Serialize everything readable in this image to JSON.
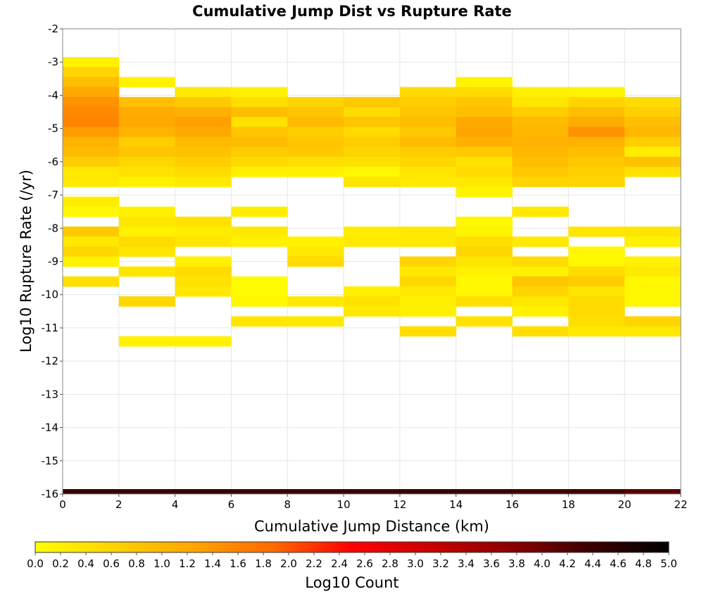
{
  "chart_data": {
    "type": "heatmap",
    "title": "Cumulative Jump Dist vs Rupture Rate",
    "xlabel": "Cumulative Jump Distance (km)",
    "ylabel": "Log10 Rupture Rate (/yr)",
    "xlim": [
      0,
      22
    ],
    "ylim": [
      -16,
      -2
    ],
    "x_ticks": [
      "0",
      "2",
      "4",
      "6",
      "8",
      "10",
      "12",
      "14",
      "16",
      "18",
      "20",
      "22"
    ],
    "y_ticks": [
      "-2",
      "-3",
      "-4",
      "-5",
      "-6",
      "-7",
      "-8",
      "-9",
      "-10",
      "-11",
      "-12",
      "-13",
      "-14",
      "-15",
      "-16"
    ],
    "colorbar": {
      "label": "Log10 Count",
      "range": [
        0,
        5
      ],
      "ticks": [
        "0.0",
        "0.2",
        "0.4",
        "0.6",
        "0.8",
        "1.0",
        "1.2",
        "1.4",
        "1.6",
        "1.8",
        "2.0",
        "2.2",
        "2.4",
        "2.6",
        "2.8",
        "3.0",
        "3.2",
        "3.4",
        "3.6",
        "3.8",
        "4.0",
        "4.2",
        "4.4",
        "4.6",
        "4.8",
        "5.0"
      ],
      "colormap": [
        "#ffff00",
        "#ffd200",
        "#ffa500",
        "#ff6a00",
        "#ff0000",
        "#c80000",
        "#8b0000",
        "#3c0000",
        "#000000"
      ]
    },
    "x_bin_width": 2,
    "y_bin_height": 0.3,
    "grid": true,
    "cells": [
      {
        "x": 0,
        "y": -3,
        "v": 0.2
      },
      {
        "x": 0,
        "y": -3.3,
        "v": 0.6
      },
      {
        "x": 0,
        "y": -3.6,
        "v": 0.9
      },
      {
        "x": 0,
        "y": -3.9,
        "v": 1.2
      },
      {
        "x": 0,
        "y": -4.2,
        "v": 1.45
      },
      {
        "x": 0,
        "y": -4.5,
        "v": 1.55
      },
      {
        "x": 0,
        "y": -4.8,
        "v": 1.6
      },
      {
        "x": 0,
        "y": -5.1,
        "v": 1.35
      },
      {
        "x": 0,
        "y": -5.4,
        "v": 1.05
      },
      {
        "x": 0,
        "y": -5.7,
        "v": 0.95
      },
      {
        "x": 0,
        "y": -6.0,
        "v": 0.7
      },
      {
        "x": 0,
        "y": -6.3,
        "v": 0.3
      },
      {
        "x": 0,
        "y": -6.6,
        "v": 0.3
      },
      {
        "x": 0,
        "y": -7.2,
        "v": 0.25
      },
      {
        "x": 0,
        "y": -7.5,
        "v": 0.1
      },
      {
        "x": 0,
        "y": -8.1,
        "v": 0.75
      },
      {
        "x": 0,
        "y": -8.4,
        "v": 0.3
      },
      {
        "x": 0,
        "y": -8.7,
        "v": 0.55
      },
      {
        "x": 0,
        "y": -9.0,
        "v": 0.2
      },
      {
        "x": 0,
        "y": -9.6,
        "v": 0.45
      },
      {
        "x": 2,
        "y": -3.6,
        "v": 0.2
      },
      {
        "x": 2,
        "y": -4.2,
        "v": 0.9
      },
      {
        "x": 2,
        "y": -4.5,
        "v": 1.15
      },
      {
        "x": 2,
        "y": -4.8,
        "v": 1.2
      },
      {
        "x": 2,
        "y": -5.1,
        "v": 1.05
      },
      {
        "x": 2,
        "y": -5.4,
        "v": 0.7
      },
      {
        "x": 2,
        "y": -5.7,
        "v": 0.8
      },
      {
        "x": 2,
        "y": -6.0,
        "v": 0.55
      },
      {
        "x": 2,
        "y": -6.3,
        "v": 0.4
      },
      {
        "x": 2,
        "y": -6.6,
        "v": 0.2
      },
      {
        "x": 2,
        "y": -7.5,
        "v": 0.2
      },
      {
        "x": 2,
        "y": -7.8,
        "v": 0.35
      },
      {
        "x": 2,
        "y": -8.1,
        "v": 0.2
      },
      {
        "x": 2,
        "y": -8.4,
        "v": 0.5
      },
      {
        "x": 2,
        "y": -8.7,
        "v": 0.35
      },
      {
        "x": 2,
        "y": -9.3,
        "v": 0.35
      },
      {
        "x": 2,
        "y": -10.2,
        "v": 0.55
      },
      {
        "x": 2,
        "y": -11.4,
        "v": 0.2
      },
      {
        "x": 4,
        "y": -3.9,
        "v": 0.3
      },
      {
        "x": 4,
        "y": -4.2,
        "v": 0.75
      },
      {
        "x": 4,
        "y": -4.5,
        "v": 1.1
      },
      {
        "x": 4,
        "y": -4.8,
        "v": 1.3
      },
      {
        "x": 4,
        "y": -5.1,
        "v": 1.2
      },
      {
        "x": 4,
        "y": -5.4,
        "v": 0.95
      },
      {
        "x": 4,
        "y": -5.7,
        "v": 0.85
      },
      {
        "x": 4,
        "y": -6.0,
        "v": 0.7
      },
      {
        "x": 4,
        "y": -6.3,
        "v": 0.5
      },
      {
        "x": 4,
        "y": -6.6,
        "v": 0.3
      },
      {
        "x": 4,
        "y": -7.8,
        "v": 0.4
      },
      {
        "x": 4,
        "y": -8.1,
        "v": 0.25
      },
      {
        "x": 4,
        "y": -8.4,
        "v": 0.35
      },
      {
        "x": 4,
        "y": -9.0,
        "v": 0.2
      },
      {
        "x": 4,
        "y": -9.3,
        "v": 0.5
      },
      {
        "x": 4,
        "y": -9.6,
        "v": 0.4
      },
      {
        "x": 4,
        "y": -9.9,
        "v": 0.3
      },
      {
        "x": 4,
        "y": -11.4,
        "v": 0.2
      },
      {
        "x": 6,
        "y": -3.9,
        "v": 0.2
      },
      {
        "x": 6,
        "y": -4.2,
        "v": 0.45
      },
      {
        "x": 6,
        "y": -4.5,
        "v": 0.9
      },
      {
        "x": 6,
        "y": -4.8,
        "v": 0.4
      },
      {
        "x": 6,
        "y": -5.1,
        "v": 0.8
      },
      {
        "x": 6,
        "y": -5.4,
        "v": 0.95
      },
      {
        "x": 6,
        "y": -5.7,
        "v": 0.7
      },
      {
        "x": 6,
        "y": -6.0,
        "v": 0.5
      },
      {
        "x": 6,
        "y": -6.3,
        "v": 0.2
      },
      {
        "x": 6,
        "y": -7.5,
        "v": 0.25
      },
      {
        "x": 6,
        "y": -8.1,
        "v": 0.3
      },
      {
        "x": 6,
        "y": -8.4,
        "v": 0.2
      },
      {
        "x": 6,
        "y": -9.6,
        "v": 0.05
      },
      {
        "x": 6,
        "y": -9.9,
        "v": 0.05
      },
      {
        "x": 6,
        "y": -10.2,
        "v": 0.1
      },
      {
        "x": 6,
        "y": -10.8,
        "v": 0.35
      },
      {
        "x": 8,
        "y": -4.2,
        "v": 0.6
      },
      {
        "x": 8,
        "y": -4.5,
        "v": 0.8
      },
      {
        "x": 8,
        "y": -4.8,
        "v": 0.95
      },
      {
        "x": 8,
        "y": -5.1,
        "v": 0.7
      },
      {
        "x": 8,
        "y": -5.4,
        "v": 0.8
      },
      {
        "x": 8,
        "y": -5.7,
        "v": 0.75
      },
      {
        "x": 8,
        "y": -6.0,
        "v": 0.45
      },
      {
        "x": 8,
        "y": -6.3,
        "v": 0.2
      },
      {
        "x": 8,
        "y": -8.4,
        "v": 0.2
      },
      {
        "x": 8,
        "y": -8.7,
        "v": 0.3
      },
      {
        "x": 8,
        "y": -9.0,
        "v": 0.5
      },
      {
        "x": 8,
        "y": -10.2,
        "v": 0.3
      },
      {
        "x": 8,
        "y": -10.8,
        "v": 0.3
      },
      {
        "x": 10,
        "y": -4.2,
        "v": 0.75
      },
      {
        "x": 10,
        "y": -4.5,
        "v": 0.5
      },
      {
        "x": 10,
        "y": -4.8,
        "v": 0.8
      },
      {
        "x": 10,
        "y": -5.1,
        "v": 0.5
      },
      {
        "x": 10,
        "y": -5.4,
        "v": 0.7
      },
      {
        "x": 10,
        "y": -5.7,
        "v": 0.6
      },
      {
        "x": 10,
        "y": -6.0,
        "v": 0.4
      },
      {
        "x": 10,
        "y": -6.3,
        "v": 0.1
      },
      {
        "x": 10,
        "y": -6.6,
        "v": 0.35
      },
      {
        "x": 10,
        "y": -8.1,
        "v": 0.25
      },
      {
        "x": 10,
        "y": -8.4,
        "v": 0.3
      },
      {
        "x": 10,
        "y": -9.9,
        "v": 0.2
      },
      {
        "x": 10,
        "y": -10.2,
        "v": 0.4
      },
      {
        "x": 10,
        "y": -10.5,
        "v": 0.3
      },
      {
        "x": 12,
        "y": -3.9,
        "v": 0.5
      },
      {
        "x": 12,
        "y": -4.2,
        "v": 0.7
      },
      {
        "x": 12,
        "y": -4.5,
        "v": 0.8
      },
      {
        "x": 12,
        "y": -4.8,
        "v": 0.9
      },
      {
        "x": 12,
        "y": -5.1,
        "v": 0.75
      },
      {
        "x": 12,
        "y": -5.4,
        "v": 0.95
      },
      {
        "x": 12,
        "y": -5.7,
        "v": 0.7
      },
      {
        "x": 12,
        "y": -6.0,
        "v": 0.55
      },
      {
        "x": 12,
        "y": -6.3,
        "v": 0.35
      },
      {
        "x": 12,
        "y": -6.6,
        "v": 0.3
      },
      {
        "x": 12,
        "y": -8.1,
        "v": 0.3
      },
      {
        "x": 12,
        "y": -8.4,
        "v": 0.3
      },
      {
        "x": 12,
        "y": -9.0,
        "v": 0.6
      },
      {
        "x": 12,
        "y": -9.3,
        "v": 0.3
      },
      {
        "x": 12,
        "y": -9.6,
        "v": 0.55
      },
      {
        "x": 12,
        "y": -9.9,
        "v": 0.3
      },
      {
        "x": 12,
        "y": -10.2,
        "v": 0.2
      },
      {
        "x": 12,
        "y": -10.5,
        "v": 0.2
      },
      {
        "x": 12,
        "y": -11.1,
        "v": 0.45
      },
      {
        "x": 14,
        "y": -3.6,
        "v": 0.15
      },
      {
        "x": 14,
        "y": -3.9,
        "v": 0.5
      },
      {
        "x": 14,
        "y": -4.2,
        "v": 0.8
      },
      {
        "x": 14,
        "y": -4.5,
        "v": 0.9
      },
      {
        "x": 14,
        "y": -4.8,
        "v": 1.2
      },
      {
        "x": 14,
        "y": -5.1,
        "v": 1.25
      },
      {
        "x": 14,
        "y": -5.4,
        "v": 1.1
      },
      {
        "x": 14,
        "y": -5.7,
        "v": 0.75
      },
      {
        "x": 14,
        "y": -6.0,
        "v": 0.4
      },
      {
        "x": 14,
        "y": -6.3,
        "v": 0.5
      },
      {
        "x": 14,
        "y": -6.6,
        "v": 0.3
      },
      {
        "x": 14,
        "y": -6.9,
        "v": 0.15
      },
      {
        "x": 14,
        "y": -7.8,
        "v": 0.1
      },
      {
        "x": 14,
        "y": -8.1,
        "v": 0.15
      },
      {
        "x": 14,
        "y": -8.4,
        "v": 0.45
      },
      {
        "x": 14,
        "y": -8.7,
        "v": 0.55
      },
      {
        "x": 14,
        "y": -9.0,
        "v": 0.35
      },
      {
        "x": 14,
        "y": -9.3,
        "v": 0.2
      },
      {
        "x": 14,
        "y": -9.6,
        "v": 0.1
      },
      {
        "x": 14,
        "y": -9.9,
        "v": 0.1
      },
      {
        "x": 14,
        "y": -10.2,
        "v": 0.45
      },
      {
        "x": 14,
        "y": -10.8,
        "v": 0.4
      },
      {
        "x": 16,
        "y": -3.9,
        "v": 0.2
      },
      {
        "x": 16,
        "y": -4.2,
        "v": 0.35
      },
      {
        "x": 16,
        "y": -4.5,
        "v": 0.7
      },
      {
        "x": 16,
        "y": -4.8,
        "v": 0.95
      },
      {
        "x": 16,
        "y": -5.1,
        "v": 1.0
      },
      {
        "x": 16,
        "y": -5.4,
        "v": 1.05
      },
      {
        "x": 16,
        "y": -5.7,
        "v": 1.0
      },
      {
        "x": 16,
        "y": -6.0,
        "v": 0.9
      },
      {
        "x": 16,
        "y": -6.3,
        "v": 0.75
      },
      {
        "x": 16,
        "y": -6.6,
        "v": 0.6
      },
      {
        "x": 16,
        "y": -7.5,
        "v": 0.3
      },
      {
        "x": 16,
        "y": -8.4,
        "v": 0.3
      },
      {
        "x": 16,
        "y": -9.0,
        "v": 0.5
      },
      {
        "x": 16,
        "y": -9.3,
        "v": 0.2
      },
      {
        "x": 16,
        "y": -9.6,
        "v": 0.8
      },
      {
        "x": 16,
        "y": -9.9,
        "v": 0.6
      },
      {
        "x": 16,
        "y": -10.2,
        "v": 0.3
      },
      {
        "x": 16,
        "y": -10.5,
        "v": 0.2
      },
      {
        "x": 16,
        "y": -11.1,
        "v": 0.45
      },
      {
        "x": 18,
        "y": -3.9,
        "v": 0.15
      },
      {
        "x": 18,
        "y": -4.2,
        "v": 0.6
      },
      {
        "x": 18,
        "y": -4.5,
        "v": 0.9
      },
      {
        "x": 18,
        "y": -4.8,
        "v": 1.15
      },
      {
        "x": 18,
        "y": -5.1,
        "v": 1.45
      },
      {
        "x": 18,
        "y": -5.4,
        "v": 1.05
      },
      {
        "x": 18,
        "y": -5.7,
        "v": 0.9
      },
      {
        "x": 18,
        "y": -6.0,
        "v": 0.75
      },
      {
        "x": 18,
        "y": -6.3,
        "v": 0.65
      },
      {
        "x": 18,
        "y": -6.6,
        "v": 0.6
      },
      {
        "x": 18,
        "y": -8.1,
        "v": 0.35
      },
      {
        "x": 18,
        "y": -8.7,
        "v": 0.1
      },
      {
        "x": 18,
        "y": -9.0,
        "v": 0.1
      },
      {
        "x": 18,
        "y": -9.3,
        "v": 0.5
      },
      {
        "x": 18,
        "y": -9.6,
        "v": 0.7
      },
      {
        "x": 18,
        "y": -9.9,
        "v": 0.35
      },
      {
        "x": 18,
        "y": -10.2,
        "v": 0.5
      },
      {
        "x": 18,
        "y": -10.5,
        "v": 0.5
      },
      {
        "x": 18,
        "y": -10.8,
        "v": 0.45
      },
      {
        "x": 18,
        "y": -11.1,
        "v": 0.3
      },
      {
        "x": 20,
        "y": -4.2,
        "v": 0.5
      },
      {
        "x": 20,
        "y": -4.5,
        "v": 0.65
      },
      {
        "x": 20,
        "y": -4.8,
        "v": 0.9
      },
      {
        "x": 20,
        "y": -5.1,
        "v": 1.0
      },
      {
        "x": 20,
        "y": -5.4,
        "v": 0.7
      },
      {
        "x": 20,
        "y": -5.7,
        "v": 0.25
      },
      {
        "x": 20,
        "y": -6.0,
        "v": 0.85
      },
      {
        "x": 20,
        "y": -6.3,
        "v": 0.4
      },
      {
        "x": 20,
        "y": -8.1,
        "v": 0.35
      },
      {
        "x": 20,
        "y": -8.4,
        "v": 0.2
      },
      {
        "x": 20,
        "y": -9.0,
        "v": 0.2
      },
      {
        "x": 20,
        "y": -9.3,
        "v": 0.3
      },
      {
        "x": 20,
        "y": -9.6,
        "v": 0.1
      },
      {
        "x": 20,
        "y": -9.9,
        "v": 0.1
      },
      {
        "x": 20,
        "y": -10.2,
        "v": 0.1
      },
      {
        "x": 20,
        "y": -10.8,
        "v": 0.6
      },
      {
        "x": 20,
        "y": -11.1,
        "v": 0.3
      },
      {
        "x": 0,
        "y": -16,
        "v": 4.45
      },
      {
        "x": 2,
        "y": -16,
        "v": 4.4
      },
      {
        "x": 4,
        "y": -16,
        "v": 4.45
      },
      {
        "x": 6,
        "y": -16,
        "v": 4.4
      },
      {
        "x": 8,
        "y": -16,
        "v": 4.4
      },
      {
        "x": 10,
        "y": -16,
        "v": 4.4
      },
      {
        "x": 12,
        "y": -16,
        "v": 4.45
      },
      {
        "x": 14,
        "y": -16,
        "v": 4.4
      },
      {
        "x": 16,
        "y": -16,
        "v": 4.35
      },
      {
        "x": 18,
        "y": -16,
        "v": 4.35
      },
      {
        "x": 20,
        "y": -16,
        "v": 4.15
      }
    ]
  }
}
